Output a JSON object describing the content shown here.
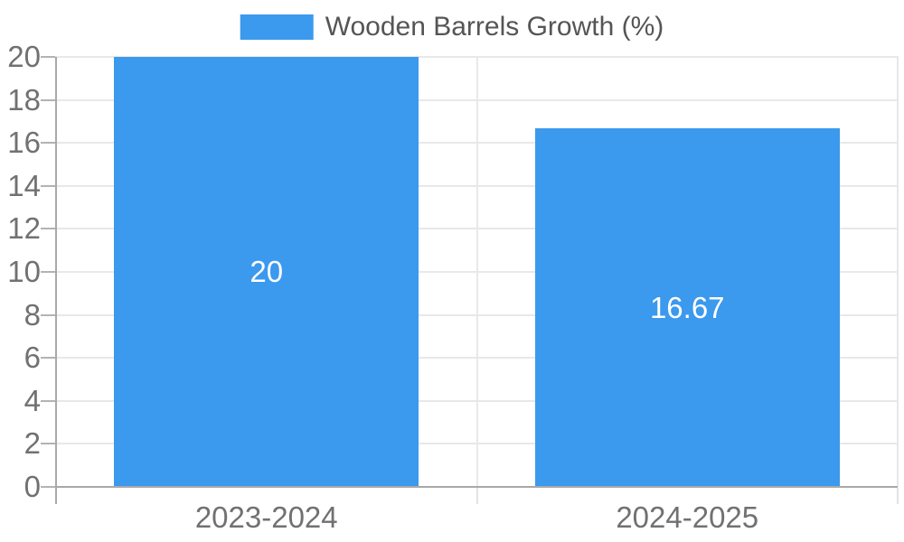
{
  "legend": {
    "label": "Wooden Barrels Growth (%)"
  },
  "chart_data": {
    "type": "bar",
    "title": "",
    "series_name": "Wooden Barrels Growth (%)",
    "categories": [
      "2023-2024",
      "2024-2025"
    ],
    "values": [
      20,
      16.67
    ],
    "value_labels": [
      "20",
      "16.67"
    ],
    "xlabel": "",
    "ylabel": "",
    "ylim": [
      0,
      20
    ],
    "ytick_step": 2,
    "yticks": [
      0,
      2,
      4,
      6,
      8,
      10,
      12,
      14,
      16,
      18,
      20
    ],
    "grid": "horizontal gridlines on, vertical gridlines at category boundaries",
    "legend_position": "top-center",
    "data_labels": "inside-center, white",
    "colors": {
      "bar": "#3B99EE",
      "grid": "#E8E8E8",
      "axis": "#A9A9A9",
      "tick": "#B3B3B3",
      "tick_label": "#717171",
      "data_label": "#FFFFFF",
      "legend_text": "#555555"
    }
  }
}
